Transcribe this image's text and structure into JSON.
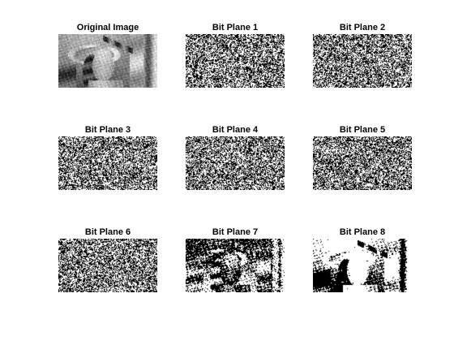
{
  "figure": {
    "background": "#ffffff",
    "panels": [
      {
        "id": "original",
        "title": "Original Image",
        "kind": "grayscale"
      },
      {
        "id": "bp1",
        "title": "Bit Plane 1",
        "kind": "bitplane",
        "bit": 1
      },
      {
        "id": "bp2",
        "title": "Bit Plane 2",
        "kind": "bitplane",
        "bit": 2
      },
      {
        "id": "bp3",
        "title": "Bit Plane 3",
        "kind": "bitplane",
        "bit": 3
      },
      {
        "id": "bp4",
        "title": "Bit Plane 4",
        "kind": "bitplane",
        "bit": 4
      },
      {
        "id": "bp5",
        "title": "Bit Plane 5",
        "kind": "bitplane",
        "bit": 5
      },
      {
        "id": "bp6",
        "title": "Bit Plane 6",
        "kind": "bitplane",
        "bit": 6
      },
      {
        "id": "bp7",
        "title": "Bit Plane 7",
        "kind": "bitplane",
        "bit": 7
      },
      {
        "id": "bp8",
        "title": "Bit Plane 8",
        "kind": "bitplane",
        "bit": 8
      }
    ]
  }
}
